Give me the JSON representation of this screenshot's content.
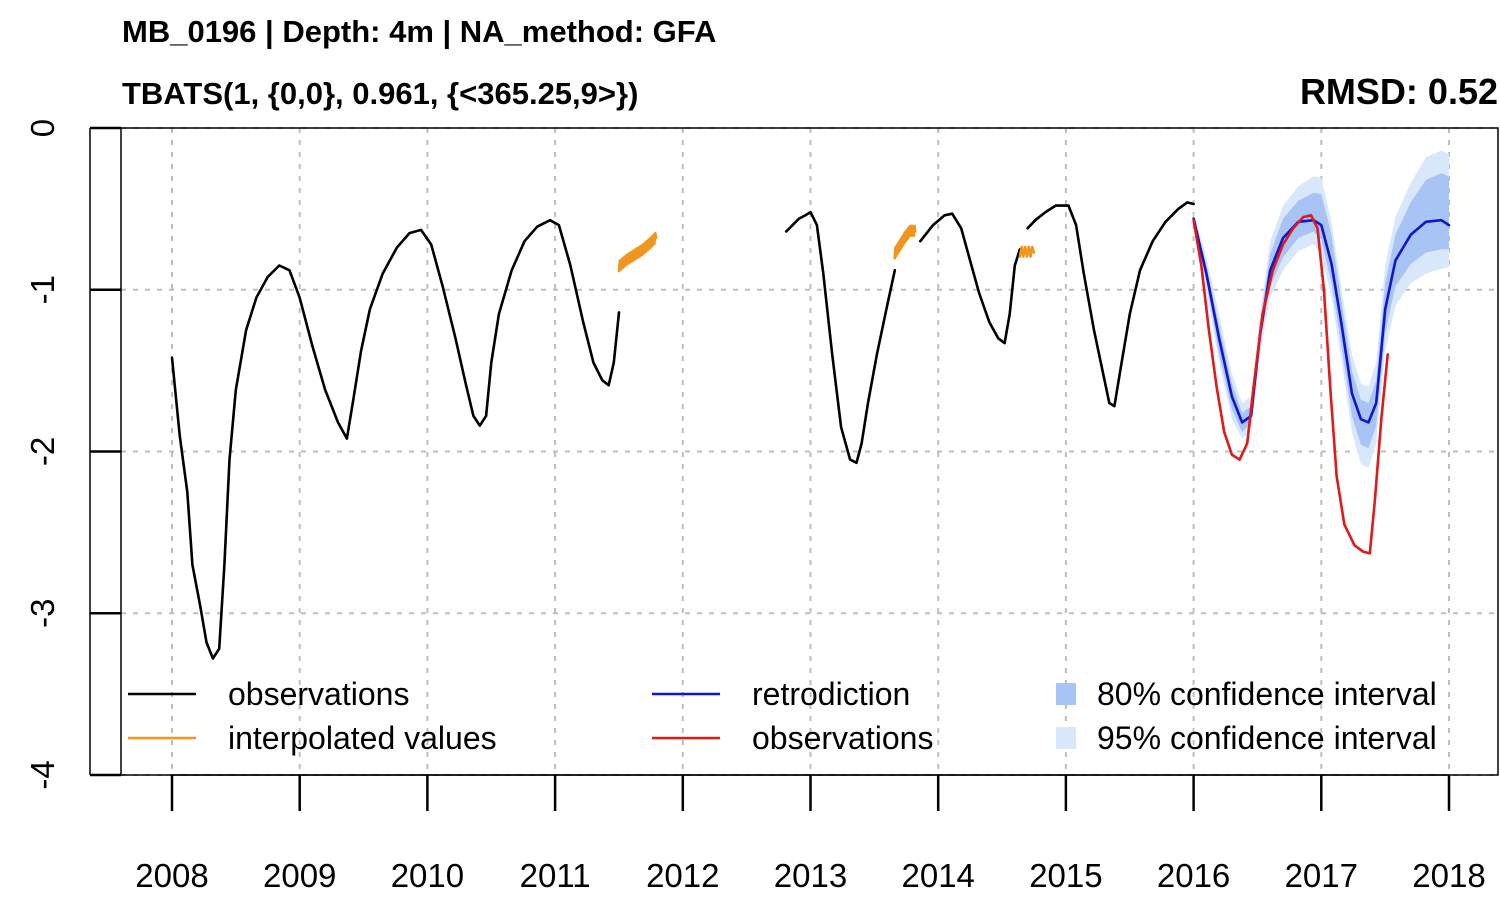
{
  "title": "MB_0196 | Depth: 4m | NA_method: GFA",
  "subtitle": "TBATS(1, {0,0}, 0.961, {<365.25,9>})",
  "rmsd_label": "RMSD: 0.52",
  "chart_data": {
    "type": "line",
    "title": "MB_0196 | Depth: 4m | NA_method: GFA",
    "subtitle": "TBATS(1, {0,0}, 0.961, {<365.25,9>})",
    "annotation": "RMSD: 0.52",
    "xlabel": "",
    "ylabel": "",
    "xlim": [
      2007.62,
      2018.4
    ],
    "ylim": [
      -4,
      0
    ],
    "x_ticks": [
      2008,
      2009,
      2010,
      2011,
      2012,
      2013,
      2014,
      2015,
      2016,
      2017,
      2018
    ],
    "y_ticks": [
      0,
      -1,
      -2,
      -3,
      -4
    ],
    "grid": true,
    "legend_position": "bottom",
    "colors": {
      "observations": "#000000",
      "interpolated": "#f0961e",
      "retrodiction": "#1414cd",
      "observations_test": "#e11919",
      "ci80": "#a8c4f5",
      "ci95": "#d9e7fb",
      "grid": "#bebebe"
    },
    "legend": [
      {
        "label": "observations",
        "kind": "line",
        "color": "#000000"
      },
      {
        "label": "interpolated values",
        "kind": "line",
        "color": "#f0961e"
      },
      {
        "label": "retrodiction",
        "kind": "line",
        "color": "#1414cd"
      },
      {
        "label": "observations",
        "kind": "line",
        "color": "#e11919"
      },
      {
        "label": "80% confidence interval",
        "kind": "box",
        "color": "#a8c4f5"
      },
      {
        "label": "95% confidence interval",
        "kind": "box",
        "color": "#d9e7fb"
      }
    ],
    "series": [
      {
        "key": "observations",
        "color": "#000000",
        "segments": [
          [
            [
              2008.0,
              -1.42
            ],
            [
              2008.06,
              -1.9
            ],
            [
              2008.12,
              -2.25
            ],
            [
              2008.16,
              -2.7
            ],
            [
              2008.22,
              -2.95
            ],
            [
              2008.27,
              -3.18
            ],
            [
              2008.32,
              -3.28
            ],
            [
              2008.37,
              -3.22
            ],
            [
              2008.41,
              -2.7
            ],
            [
              2008.45,
              -2.05
            ],
            [
              2008.5,
              -1.62
            ],
            [
              2008.58,
              -1.25
            ],
            [
              2008.66,
              -1.05
            ],
            [
              2008.75,
              -0.92
            ],
            [
              2008.84,
              -0.85
            ],
            [
              2008.92,
              -0.88
            ],
            [
              2009.0,
              -1.05
            ],
            [
              2009.1,
              -1.35
            ],
            [
              2009.2,
              -1.62
            ],
            [
              2009.3,
              -1.82
            ],
            [
              2009.37,
              -1.92
            ],
            [
              2009.42,
              -1.68
            ],
            [
              2009.48,
              -1.38
            ],
            [
              2009.55,
              -1.12
            ],
            [
              2009.65,
              -0.9
            ],
            [
              2009.76,
              -0.74
            ],
            [
              2009.86,
              -0.65
            ],
            [
              2009.95,
              -0.63
            ],
            [
              2010.03,
              -0.72
            ],
            [
              2010.12,
              -0.98
            ],
            [
              2010.22,
              -1.3
            ],
            [
              2010.3,
              -1.58
            ],
            [
              2010.36,
              -1.78
            ],
            [
              2010.41,
              -1.84
            ],
            [
              2010.46,
              -1.78
            ],
            [
              2010.5,
              -1.45
            ],
            [
              2010.56,
              -1.15
            ],
            [
              2010.66,
              -0.88
            ],
            [
              2010.76,
              -0.7
            ],
            [
              2010.86,
              -0.61
            ],
            [
              2010.96,
              -0.57
            ],
            [
              2011.03,
              -0.6
            ],
            [
              2011.12,
              -0.85
            ],
            [
              2011.22,
              -1.2
            ],
            [
              2011.3,
              -1.45
            ],
            [
              2011.37,
              -1.56
            ],
            [
              2011.42,
              -1.59
            ],
            [
              2011.46,
              -1.45
            ],
            [
              2011.5,
              -1.14
            ]
          ],
          [
            [
              2012.81,
              -0.64
            ],
            [
              2012.86,
              -0.6
            ],
            [
              2012.91,
              -0.56
            ],
            [
              2012.96,
              -0.54
            ],
            [
              2013.0,
              -0.52
            ],
            [
              2013.05,
              -0.6
            ],
            [
              2013.1,
              -0.9
            ],
            [
              2013.17,
              -1.4
            ],
            [
              2013.24,
              -1.85
            ],
            [
              2013.31,
              -2.05
            ],
            [
              2013.36,
              -2.07
            ],
            [
              2013.4,
              -1.95
            ],
            [
              2013.45,
              -1.7
            ],
            [
              2013.52,
              -1.4
            ],
            [
              2013.6,
              -1.1
            ],
            [
              2013.66,
              -0.88
            ]
          ],
          [
            [
              2013.86,
              -0.7
            ],
            [
              2013.96,
              -0.6
            ],
            [
              2014.05,
              -0.54
            ],
            [
              2014.11,
              -0.53
            ],
            [
              2014.18,
              -0.62
            ],
            [
              2014.25,
              -0.82
            ],
            [
              2014.32,
              -1.02
            ],
            [
              2014.4,
              -1.2
            ],
            [
              2014.47,
              -1.3
            ],
            [
              2014.52,
              -1.33
            ],
            [
              2014.56,
              -1.15
            ],
            [
              2014.6,
              -0.85
            ],
            [
              2014.64,
              -0.75
            ]
          ],
          [
            [
              2014.7,
              -0.62
            ],
            [
              2014.76,
              -0.57
            ],
            [
              2014.84,
              -0.52
            ],
            [
              2014.92,
              -0.48
            ],
            [
              2015.02,
              -0.48
            ],
            [
              2015.08,
              -0.6
            ],
            [
              2015.14,
              -0.9
            ],
            [
              2015.22,
              -1.25
            ],
            [
              2015.3,
              -1.55
            ],
            [
              2015.34,
              -1.7
            ],
            [
              2015.38,
              -1.72
            ],
            [
              2015.43,
              -1.48
            ],
            [
              2015.5,
              -1.15
            ],
            [
              2015.58,
              -0.88
            ],
            [
              2015.68,
              -0.7
            ],
            [
              2015.78,
              -0.58
            ],
            [
              2015.88,
              -0.5
            ],
            [
              2015.95,
              -0.46
            ],
            [
              2016.0,
              -0.47
            ]
          ]
        ]
      },
      {
        "key": "interpolated",
        "color": "#f0961e",
        "jitter": true,
        "segments": [
          [
            [
              2011.5,
              -0.86
            ],
            [
              2011.56,
              -0.82
            ],
            [
              2011.62,
              -0.79
            ],
            [
              2011.68,
              -0.76
            ],
            [
              2011.74,
              -0.72
            ],
            [
              2011.79,
              -0.68
            ]
          ],
          [
            [
              2013.66,
              -0.78
            ],
            [
              2013.7,
              -0.73
            ],
            [
              2013.74,
              -0.68
            ],
            [
              2013.78,
              -0.64
            ],
            [
              2013.82,
              -0.64
            ]
          ],
          [
            [
              2014.64,
              -0.77
            ],
            [
              2014.75,
              -0.77
            ]
          ]
        ]
      },
      {
        "key": "ci95",
        "color": "#d9e7fb",
        "band": {
          "x": [
            2016.0,
            2016.1,
            2016.2,
            2016.3,
            2016.38,
            2016.45,
            2016.52,
            2016.6,
            2016.7,
            2016.82,
            2016.94,
            2017.0,
            2017.08,
            2017.16,
            2017.24,
            2017.31,
            2017.37,
            2017.43,
            2017.5,
            2017.58,
            2017.7,
            2017.82,
            2017.94,
            2018.0
          ],
          "lower": [
            -0.6,
            -1.0,
            -1.45,
            -1.8,
            -1.92,
            -1.88,
            -1.4,
            -1.05,
            -0.88,
            -0.76,
            -0.72,
            -0.78,
            -1.05,
            -1.45,
            -1.88,
            -2.08,
            -2.1,
            -1.95,
            -1.38,
            -1.1,
            -0.96,
            -0.9,
            -0.87,
            -0.86
          ],
          "upper": [
            -0.52,
            -0.8,
            -1.15,
            -1.52,
            -1.7,
            -1.66,
            -1.15,
            -0.7,
            -0.48,
            -0.36,
            -0.3,
            -0.31,
            -0.58,
            -1.0,
            -1.4,
            -1.58,
            -1.6,
            -1.45,
            -0.85,
            -0.55,
            -0.34,
            -0.18,
            -0.14,
            -0.16
          ]
        }
      },
      {
        "key": "ci80",
        "color": "#a8c4f5",
        "band": {
          "x": [
            2016.0,
            2016.1,
            2016.2,
            2016.3,
            2016.38,
            2016.45,
            2016.52,
            2016.6,
            2016.7,
            2016.82,
            2016.94,
            2017.0,
            2017.08,
            2017.16,
            2017.24,
            2017.31,
            2017.37,
            2017.43,
            2017.5,
            2017.58,
            2017.7,
            2017.82,
            2017.94,
            2018.0
          ],
          "lower": [
            -0.58,
            -0.95,
            -1.4,
            -1.74,
            -1.88,
            -1.82,
            -1.33,
            -0.98,
            -0.8,
            -0.68,
            -0.64,
            -0.69,
            -0.96,
            -1.36,
            -1.78,
            -1.96,
            -1.98,
            -1.84,
            -1.27,
            -0.98,
            -0.84,
            -0.77,
            -0.75,
            -0.75
          ],
          "upper": [
            -0.54,
            -0.85,
            -1.22,
            -1.58,
            -1.76,
            -1.72,
            -1.2,
            -0.78,
            -0.56,
            -0.45,
            -0.4,
            -0.41,
            -0.66,
            -1.08,
            -1.5,
            -1.68,
            -1.7,
            -1.56,
            -0.96,
            -0.66,
            -0.46,
            -0.32,
            -0.28,
            -0.3
          ]
        }
      },
      {
        "key": "retrodiction",
        "color": "#1414cd",
        "segments": [
          [
            [
              2016.0,
              -0.56
            ],
            [
              2016.1,
              -0.9
            ],
            [
              2016.2,
              -1.3
            ],
            [
              2016.3,
              -1.66
            ],
            [
              2016.38,
              -1.82
            ],
            [
              2016.45,
              -1.78
            ],
            [
              2016.52,
              -1.28
            ],
            [
              2016.6,
              -0.88
            ],
            [
              2016.7,
              -0.68
            ],
            [
              2016.82,
              -0.58
            ],
            [
              2016.94,
              -0.57
            ],
            [
              2017.0,
              -0.6
            ],
            [
              2017.08,
              -0.84
            ],
            [
              2017.16,
              -1.22
            ],
            [
              2017.24,
              -1.64
            ],
            [
              2017.31,
              -1.8
            ],
            [
              2017.37,
              -1.82
            ],
            [
              2017.43,
              -1.7
            ],
            [
              2017.5,
              -1.12
            ],
            [
              2017.58,
              -0.82
            ],
            [
              2017.7,
              -0.66
            ],
            [
              2017.82,
              -0.58
            ],
            [
              2017.94,
              -0.57
            ],
            [
              2018.0,
              -0.6
            ]
          ]
        ]
      },
      {
        "key": "observations_test",
        "color": "#e11919",
        "segments": [
          [
            [
              2016.0,
              -0.57
            ],
            [
              2016.06,
              -0.85
            ],
            [
              2016.12,
              -1.25
            ],
            [
              2016.18,
              -1.6
            ],
            [
              2016.24,
              -1.88
            ],
            [
              2016.3,
              -2.02
            ],
            [
              2016.36,
              -2.05
            ],
            [
              2016.42,
              -1.95
            ],
            [
              2016.47,
              -1.6
            ],
            [
              2016.54,
              -1.15
            ],
            [
              2016.62,
              -0.88
            ],
            [
              2016.7,
              -0.72
            ],
            [
              2016.78,
              -0.62
            ],
            [
              2016.86,
              -0.55
            ],
            [
              2016.92,
              -0.54
            ],
            [
              2016.97,
              -0.62
            ],
            [
              2017.02,
              -1.0
            ],
            [
              2017.07,
              -1.6
            ],
            [
              2017.12,
              -2.15
            ],
            [
              2017.18,
              -2.45
            ],
            [
              2017.26,
              -2.58
            ],
            [
              2017.33,
              -2.62
            ],
            [
              2017.38,
              -2.63
            ],
            [
              2017.42,
              -2.3
            ],
            [
              2017.47,
              -1.8
            ],
            [
              2017.52,
              -1.4
            ]
          ]
        ]
      }
    ]
  }
}
